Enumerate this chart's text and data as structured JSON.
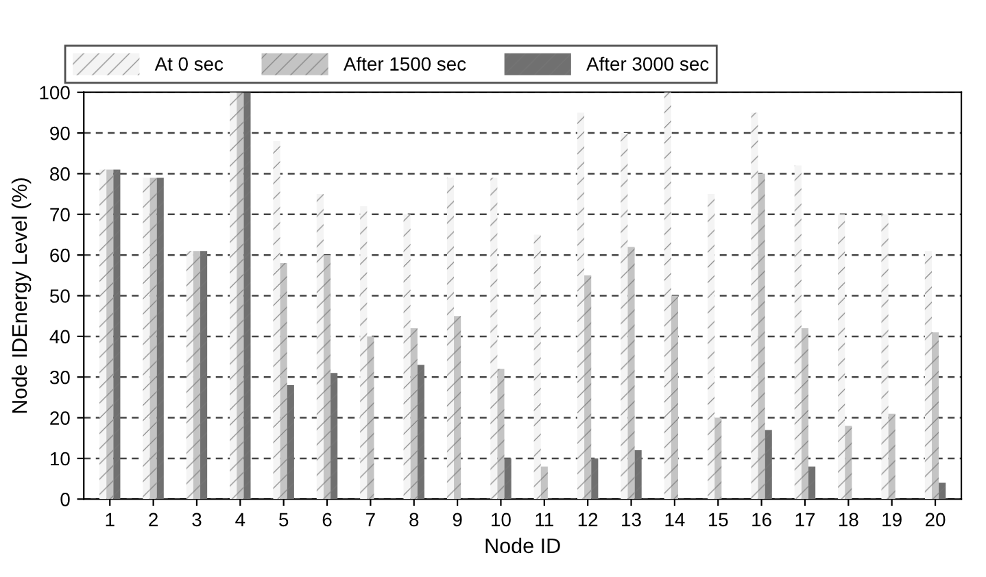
{
  "chart_data": {
    "type": "bar",
    "xlabel": "Node ID",
    "ylabel": "Node IDEnergy Level (%)",
    "categories": [
      "1",
      "2",
      "3",
      "4",
      "5",
      "6",
      "7",
      "8",
      "9",
      "10",
      "11",
      "12",
      "13",
      "14",
      "15",
      "16",
      "17",
      "18",
      "19",
      "20"
    ],
    "series": [
      {
        "name": "At 0 sec",
        "color": "#f4f4f4",
        "values": [
          81,
          79,
          61,
          100,
          88,
          75,
          72,
          70,
          79,
          79,
          65,
          95,
          90,
          100,
          75,
          95,
          82,
          70,
          70,
          61
        ]
      },
      {
        "name": "After 1500 sec",
        "color": "#c4c4c4",
        "values": [
          81,
          79,
          61,
          100,
          58,
          60,
          40,
          42,
          45,
          32,
          8,
          55,
          62,
          50,
          20,
          80,
          42,
          18,
          21,
          41
        ]
      },
      {
        "name": "After 3000 sec",
        "color": "#707070",
        "values": [
          81,
          79,
          61,
          100,
          28,
          31,
          0,
          33,
          0,
          10,
          0,
          10,
          12,
          0,
          0,
          17,
          8,
          0,
          0,
          4
        ]
      }
    ],
    "ylim": [
      0,
      100
    ],
    "yticks": [
      0,
      10,
      20,
      30,
      40,
      50,
      60,
      70,
      80,
      90,
      100
    ],
    "grid": "y",
    "legend": "top"
  }
}
